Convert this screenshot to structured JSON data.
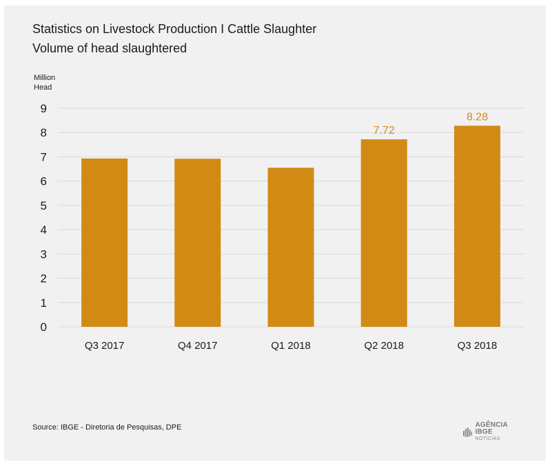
{
  "title_line1": "Statistics on Livestock Production I Cattle Slaughter",
  "title_line2": "Volume of head slaughtered",
  "unit_line1": "Million",
  "unit_line2": "Head",
  "source": "Source: IBGE - Diretoria de Pesquisas, DPE",
  "logo": {
    "main": "AGÊNCIA IBGE",
    "sub": "NOTÍCIAS"
  },
  "colors": {
    "bar": "#d18b14",
    "label": "#d18b14",
    "grid": "#d9d9d9",
    "background": "#f1f1f2"
  },
  "chart_data": {
    "type": "bar",
    "categories": [
      "Q3 2017",
      "Q4 2017",
      "Q1 2018",
      "Q2 2018",
      "Q3 2018"
    ],
    "values": [
      6.93,
      6.92,
      6.55,
      7.72,
      8.28
    ],
    "data_labels": [
      "",
      "",
      "",
      "7.72",
      "8.28"
    ],
    "ylabel": "Million Head",
    "ylim": [
      0,
      9
    ],
    "yticks": [
      0,
      1,
      2,
      3,
      4,
      5,
      6,
      7,
      8,
      9
    ],
    "grid": true
  }
}
